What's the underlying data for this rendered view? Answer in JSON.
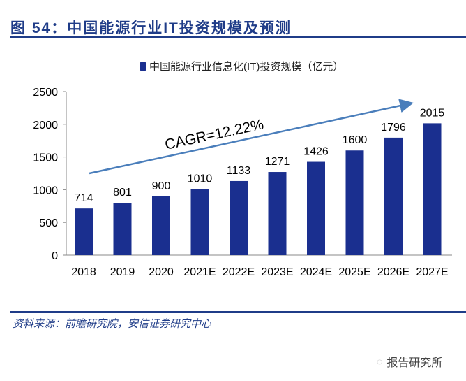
{
  "title": "图 54：中国能源行业IT投资规模及预测",
  "source": "资料来源：前瞻研究院，安信证券研究中心",
  "watermark": "报告研究所",
  "colors": {
    "bar": "#1a2f8f",
    "accent": "#1f3c88",
    "arrow": "#4a7ebb"
  },
  "chart_data": {
    "type": "bar",
    "categories": [
      "2018",
      "2019",
      "2020",
      "2021E",
      "2022E",
      "2023E",
      "2024E",
      "2025E",
      "2026E",
      "2027E"
    ],
    "series": [
      {
        "name": "中国能源行业信息化(IT)投资规模（亿元）",
        "values": [
          714,
          801,
          900,
          1010,
          1133,
          1271,
          1426,
          1600,
          1796,
          2015
        ]
      }
    ],
    "ylim": [
      0,
      2500
    ],
    "yticks": [
      0,
      500,
      1000,
      1500,
      2000,
      2500
    ],
    "annotation": "CAGR=12.22%",
    "grid": false,
    "legend": "top"
  }
}
